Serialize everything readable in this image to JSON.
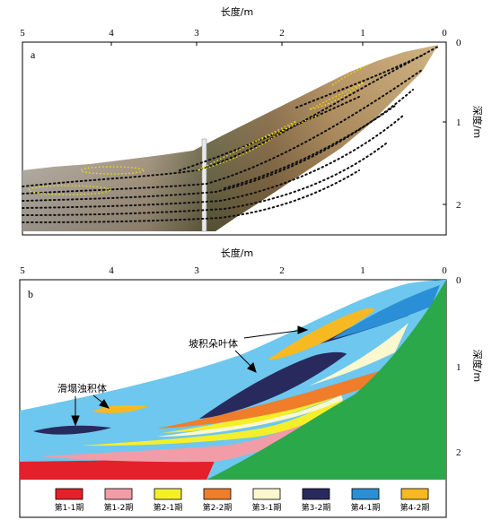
{
  "panel_a": {
    "letter": "a",
    "x_axis_title": "长度/m",
    "y_axis_title": "深度/m",
    "x_ticks": [
      "5",
      "4",
      "3",
      "2",
      "1",
      "0"
    ],
    "y_ticks": [
      "0",
      "1",
      "2"
    ]
  },
  "panel_b": {
    "letter": "b",
    "x_axis_title": "长度/m",
    "y_axis_title": "深度/m",
    "x_ticks": [
      "5",
      "4",
      "3",
      "2",
      "1",
      "0"
    ],
    "y_ticks": [
      "0",
      "1",
      "2"
    ],
    "annotations": {
      "slope_lobe": "坡积朵叶体",
      "slump_turbidite": "滑塌浊积体"
    }
  },
  "legend": [
    {
      "label": "第1-1期",
      "color": "#e4202a"
    },
    {
      "label": "第1-2期",
      "color": "#f29ca7"
    },
    {
      "label": "第2-1期",
      "color": "#f5ef2a"
    },
    {
      "label": "第2-2期",
      "color": "#ef7d2a"
    },
    {
      "label": "第3-1期",
      "color": "#fbf7cf"
    },
    {
      "label": "第3-2期",
      "color": "#282a5e"
    },
    {
      "label": "第4-1期",
      "color": "#2a8fd6"
    },
    {
      "label": "第4-2期",
      "color": "#f7b922"
    }
  ],
  "colors": {
    "background_layer": "#6ec7ee",
    "basement": "#2aa84a"
  }
}
